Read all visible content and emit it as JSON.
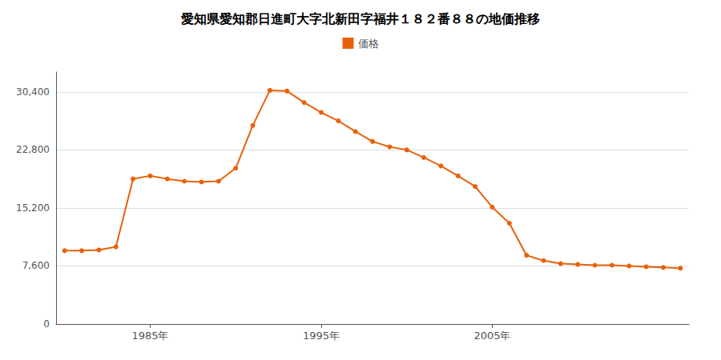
{
  "chart_data": {
    "type": "line",
    "title": "愛知県愛知郡日進町大字北新田字福井１８２番８８の地価推移",
    "x": [
      1980,
      1981,
      1982,
      1983,
      1984,
      1985,
      1986,
      1987,
      1988,
      1989,
      1990,
      1991,
      1992,
      1993,
      1994,
      1995,
      1996,
      1997,
      1998,
      1999,
      2000,
      2001,
      2002,
      2003,
      2004,
      2005,
      2006,
      2007,
      2008,
      2009,
      2010,
      2011,
      2012,
      2013,
      2014,
      2015,
      2016
    ],
    "series": [
      {
        "name": "価格",
        "color": "#E8610A",
        "marker": "circle",
        "values": [
          9600,
          9600,
          9700,
          10100,
          19000,
          19400,
          19000,
          18700,
          18600,
          18700,
          20400,
          26000,
          30600,
          30500,
          29000,
          27700,
          26600,
          25200,
          23900,
          23200,
          22800,
          21800,
          20700,
          19400,
          18000,
          15300,
          13200,
          9000,
          8300,
          7900,
          7800,
          7700,
          7700,
          7600,
          7500,
          7400,
          7300
        ]
      }
    ],
    "xlim": [
      1979.5,
      2016.5
    ],
    "xticks": [
      {
        "value": 1985,
        "label": "1985年"
      },
      {
        "value": 1995,
        "label": "1995年"
      },
      {
        "value": 2005,
        "label": "2005年"
      }
    ],
    "ylim": [
      0,
      33000
    ],
    "yticks": [
      0,
      {
        "value": 7600,
        "label": "7,600"
      },
      {
        "value": 15200,
        "label": "15,200"
      },
      {
        "value": 22800,
        "label": "22,800"
      },
      {
        "value": 30400,
        "label": "30,400"
      }
    ],
    "grid": true,
    "legend": "top"
  }
}
